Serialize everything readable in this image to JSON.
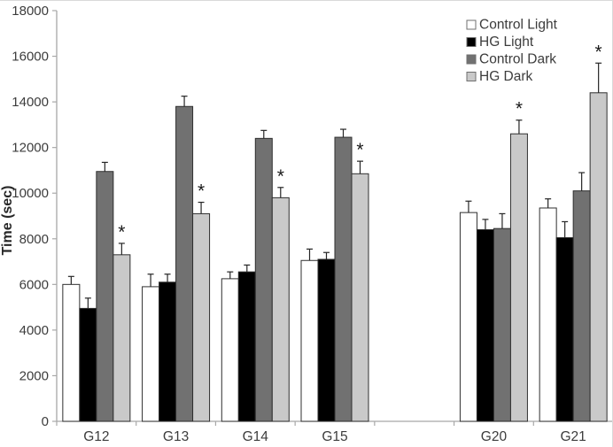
{
  "chart_data": {
    "type": "bar",
    "title": "",
    "xlabel": "",
    "ylabel": "Time (sec)",
    "ylim": [
      0,
      18000
    ],
    "ytick_step": 2000,
    "grid": false,
    "legend_position": "top-right",
    "categories": [
      "G12",
      "G13",
      "G14",
      "G15",
      null,
      "G20",
      "G21"
    ],
    "series": [
      {
        "name": "Control Light",
        "color": "#ffffff",
        "values": [
          6000,
          5900,
          6250,
          7050,
          null,
          9150,
          9350
        ],
        "errors": [
          350,
          550,
          300,
          500,
          null,
          500,
          400
        ]
      },
      {
        "name": "HG Light",
        "color": "#000000",
        "values": [
          4950,
          6100,
          6550,
          7100,
          null,
          8400,
          8050
        ],
        "errors": [
          450,
          350,
          300,
          300,
          null,
          450,
          700
        ]
      },
      {
        "name": "Control Dark",
        "color": "#717171",
        "values": [
          10950,
          13800,
          12400,
          12450,
          null,
          8450,
          10100
        ],
        "errors": [
          400,
          450,
          350,
          350,
          null,
          650,
          800
        ]
      },
      {
        "name": "HG Dark",
        "color": "#c9c9c9",
        "values": [
          7300,
          9100,
          9800,
          10850,
          null,
          12600,
          14400
        ],
        "errors": [
          500,
          500,
          450,
          550,
          null,
          600,
          1300
        ]
      }
    ],
    "significance": {
      "series": "HG Dark",
      "symbol": "*",
      "slots": [
        0,
        1,
        2,
        3,
        5,
        6
      ]
    },
    "colors": {
      "axis": "#a8a8a8",
      "bar_border": "#2f2f2f",
      "error_bar": "#262626",
      "text": "#3c3c3c",
      "legend_swatch_border": "#6f6f6f"
    }
  }
}
